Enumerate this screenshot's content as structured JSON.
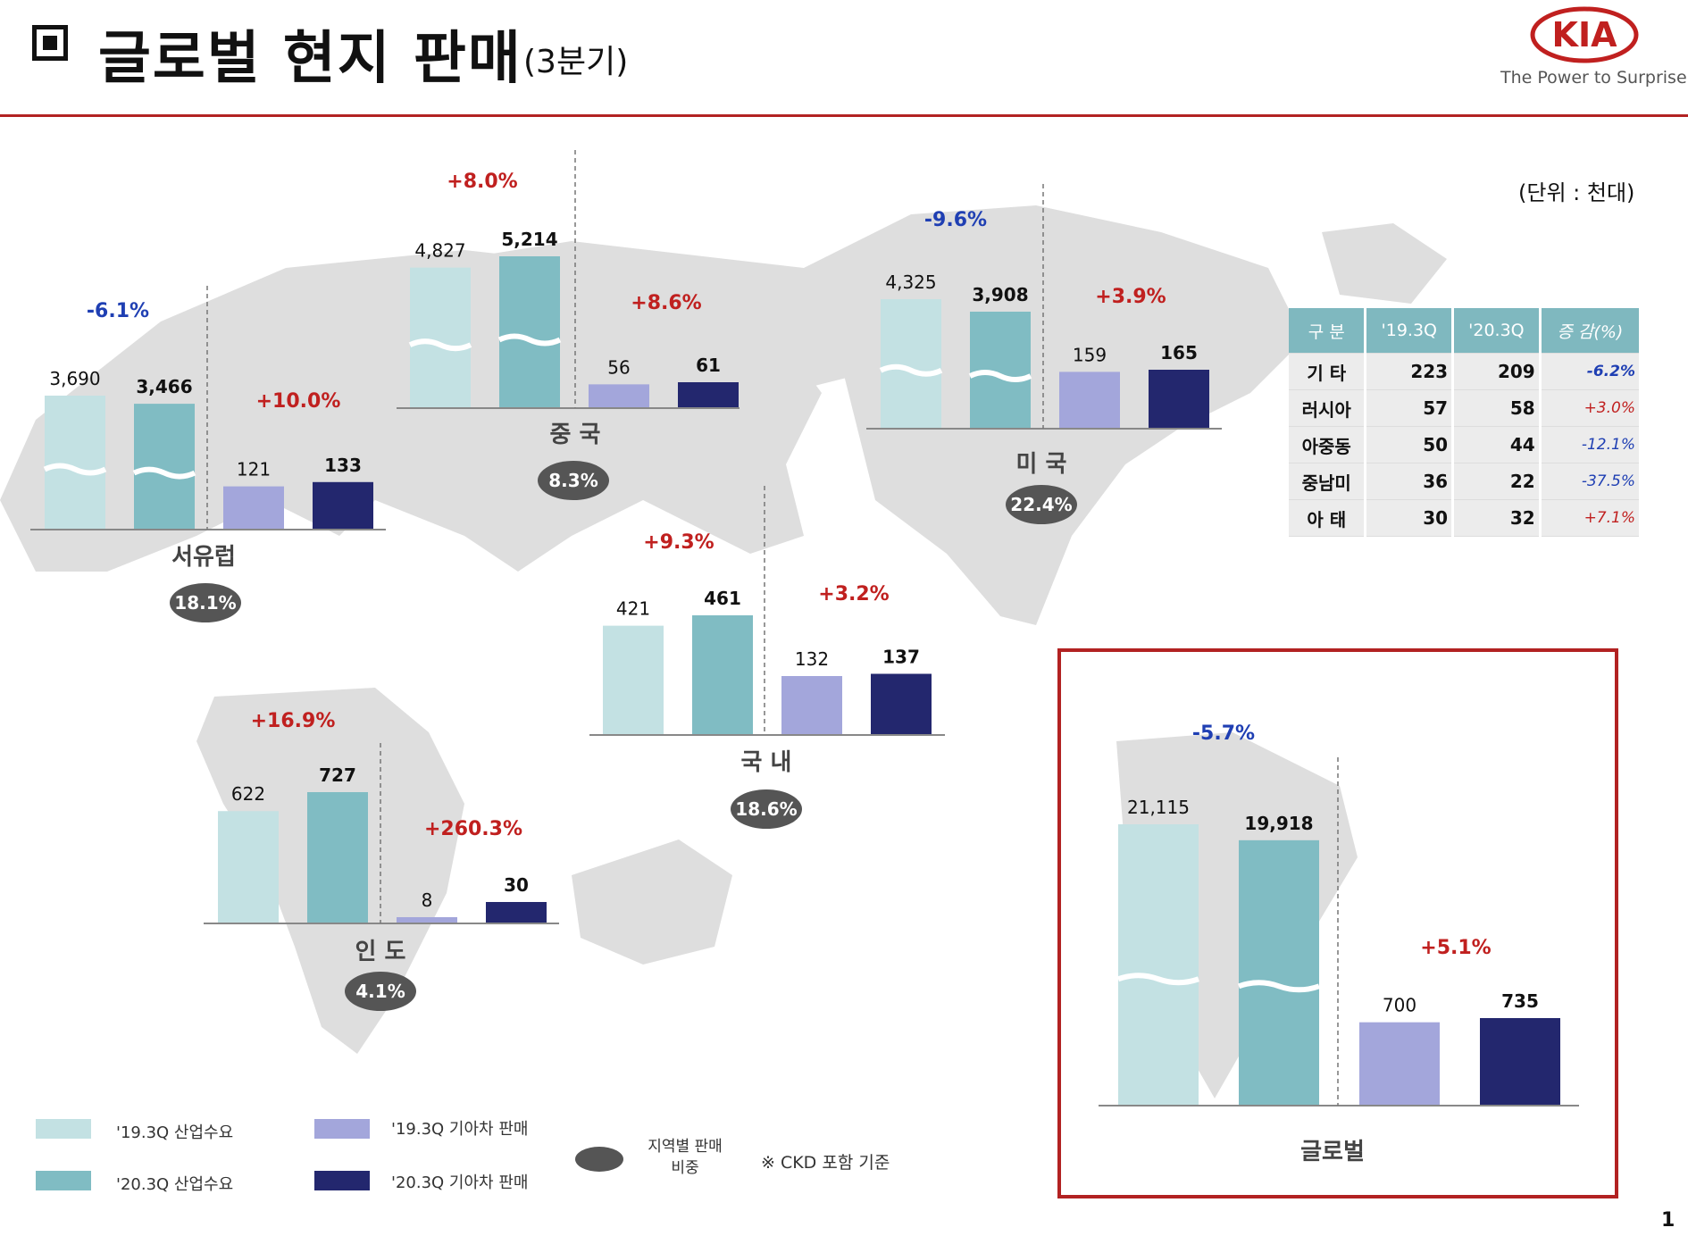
{
  "header": {
    "title": "글로벌 현지 판매",
    "subtitle": "(3분기)",
    "logo_text": "KIA",
    "tagline": "The Power to Surprise"
  },
  "unit_label": "(단위 : 천대)",
  "page_number": "1",
  "colors": {
    "ind_19": "#c3e1e3",
    "ind_20": "#80bcc3",
    "kia_19": "#a3a6db",
    "kia_20": "#23276e",
    "pos": "#c0201f",
    "neg": "#1f3fb3",
    "accent": "#b22222"
  },
  "chart_data": {
    "type": "bar",
    "title": "글로벌 현지 판매 (3분기)",
    "unit": "천대",
    "series_names": [
      "'19.3Q 산업수요",
      "'20.3Q 산업수요",
      "'19.3Q 기아차 판매",
      "'20.3Q 기아차 판매"
    ],
    "regions": [
      {
        "name": "서유럽",
        "industry": [
          3690,
          3466
        ],
        "kia": [
          121,
          133
        ],
        "industry_change": "-6.1%",
        "kia_change": "+10.0%",
        "share": "18.1%"
      },
      {
        "name": "중 국",
        "industry": [
          4827,
          5214
        ],
        "kia": [
          56,
          61
        ],
        "industry_change": "+8.0%",
        "kia_change": "+8.6%",
        "share": "8.3%"
      },
      {
        "name": "미 국",
        "industry": [
          4325,
          3908
        ],
        "kia": [
          159,
          165
        ],
        "industry_change": "-9.6%",
        "kia_change": "+3.9%",
        "share": "22.4%"
      },
      {
        "name": "국 내",
        "industry": [
          421,
          461
        ],
        "kia": [
          132,
          137
        ],
        "industry_change": "+9.3%",
        "kia_change": "+3.2%",
        "share": "18.6%"
      },
      {
        "name": "인 도",
        "industry": [
          622,
          727
        ],
        "kia": [
          8,
          30
        ],
        "industry_change": "+16.9%",
        "kia_change": "+260.3%",
        "share": "4.1%"
      },
      {
        "name": "글로벌",
        "industry": [
          21115,
          19918
        ],
        "kia": [
          700,
          735
        ],
        "industry_change": "-5.7%",
        "kia_change": "+5.1%",
        "share": ""
      }
    ]
  },
  "other_table": {
    "headers": [
      "구 분",
      "'19.3Q",
      "'20.3Q",
      "증 감(%)"
    ],
    "rows": [
      {
        "label": "기 타",
        "q19": "223",
        "q20": "209",
        "change": "-6.2%"
      },
      {
        "label": "러시아",
        "q19": "57",
        "q20": "58",
        "change": "+3.0%"
      },
      {
        "label": "아중동",
        "q19": "50",
        "q20": "44",
        "change": "-12.1%"
      },
      {
        "label": "중남미",
        "q19": "36",
        "q20": "22",
        "change": "-37.5%"
      },
      {
        "label": "아 태",
        "q19": "30",
        "q20": "32",
        "change": "+7.1%"
      }
    ]
  },
  "legend": {
    "ind_19": "'19.3Q 산업수요",
    "ind_20": "'20.3Q 산업수요",
    "kia_19": "'19.3Q 기아차 판매",
    "kia_20": "'20.3Q 기아차 판매",
    "share": "지역별 판매 비중",
    "note": "※ CKD 포함 기준"
  }
}
